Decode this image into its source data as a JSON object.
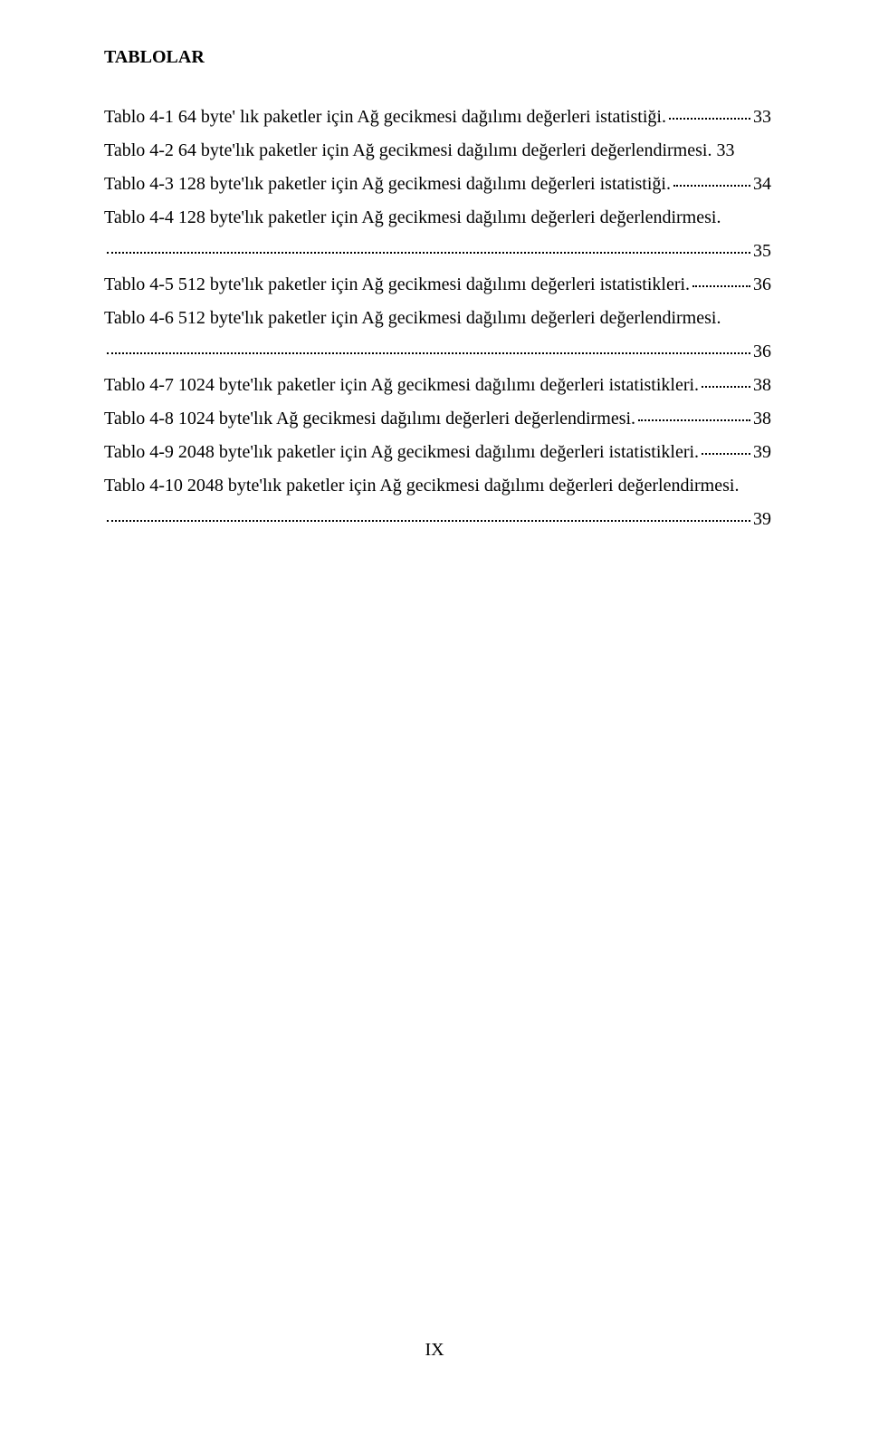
{
  "title": "TABLOLAR",
  "entries": [
    {
      "text": "Tablo 4-1  64 byte' lık paketler için Ağ gecikmesi dağılımı değerleri istatistiği.",
      "page": "33",
      "wrap": false
    },
    {
      "text": "Tablo 4-2  64 byte'lık paketler için Ağ gecikmesi dağılımı değerleri değerlendirmesi. 33",
      "page": "",
      "nowrapOnly": true
    },
    {
      "text": "Tablo 4-3  128 byte'lık paketler için Ağ gecikmesi dağılımı değerleri istatistiği.",
      "page": "34",
      "wrap": false
    },
    {
      "text": "Tablo 4-4  128 byte'lık paketler için Ağ gecikmesi dağılımı değerleri değerlendirmesi.",
      "page": "35",
      "wrap": true
    },
    {
      "text": "Tablo 4-5  512 byte'lık paketler için Ağ gecikmesi dağılımı değerleri istatistikleri.",
      "page": "36",
      "wrap": false
    },
    {
      "text": "Tablo 4-6  512 byte'lık paketler için Ağ gecikmesi dağılımı değerleri değerlendirmesi.",
      "page": "36",
      "wrap": true
    },
    {
      "text": "Tablo 4-7  1024 byte'lık  paketler için Ağ gecikmesi dağılımı değerleri istatistikleri.",
      "page": "38",
      "wrap": false
    },
    {
      "text": "Tablo 4-8  1024 byte'lık Ağ gecikmesi dağılımı değerleri değerlendirmesi.",
      "page": "38",
      "wrap": false
    },
    {
      "text": "Tablo 4-9  2048 byte'lık paketler için Ağ gecikmesi dağılımı değerleri istatistikleri.",
      "page": "39",
      "wrap": false
    },
    {
      "text": "Tablo 4-10 2048 byte'lık paketler için Ağ gecikmesi dağılımı değerleri değerlendirmesi.",
      "page": "39",
      "wrap": true
    }
  ],
  "footer": "IX"
}
